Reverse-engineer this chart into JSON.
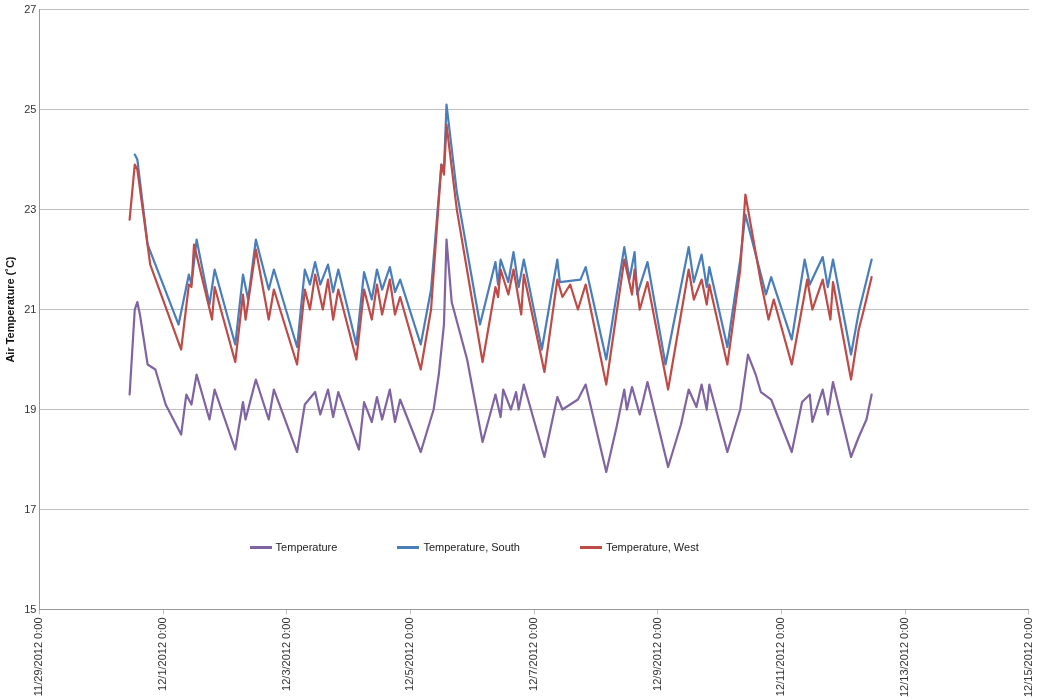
{
  "chart_data": {
    "type": "line",
    "ylabel": "Air Temperature (˚C)",
    "ylim": [
      15,
      27
    ],
    "yticks": [
      15,
      17,
      19,
      21,
      23,
      25,
      27
    ],
    "xlim": [
      "2012-11-29T00:00",
      "2012-12-15T00:00"
    ],
    "xticks": [
      {
        "value": "2012-11-29T00:00",
        "label": "11/29/2012 0:00"
      },
      {
        "value": "2012-12-01T00:00",
        "label": "12/1/2012 0:00"
      },
      {
        "value": "2012-12-03T00:00",
        "label": "12/3/2012 0:00"
      },
      {
        "value": "2012-12-05T00:00",
        "label": "12/5/2012 0:00"
      },
      {
        "value": "2012-12-07T00:00",
        "label": "12/7/2012 0:00"
      },
      {
        "value": "2012-12-09T00:00",
        "label": "12/9/2012 0:00"
      },
      {
        "value": "2012-12-11T00:00",
        "label": "12/11/2012 0:00"
      },
      {
        "value": "2012-12-13T00:00",
        "label": "12/13/2012 0:00"
      },
      {
        "value": "2012-12-15T00:00",
        "label": "12/15/2012 0:00"
      }
    ],
    "grid": "y",
    "legend": "bottom",
    "marker": "none",
    "line_style": "solid",
    "series": [
      {
        "name": "Temperature",
        "color": "#8064a2",
        "x": [
          "2012-11-30T11:00",
          "2012-11-30T13:00",
          "2012-11-30T14:00",
          "2012-11-30T15:00",
          "2012-11-30T18:00",
          "2012-11-30T21:00",
          "2012-12-01T01:00",
          "2012-12-01T07:00",
          "2012-12-01T09:00",
          "2012-12-01T11:00",
          "2012-12-01T13:00",
          "2012-12-01T18:00",
          "2012-12-01T20:00",
          "2012-12-02T04:00",
          "2012-12-02T07:00",
          "2012-12-02T08:00",
          "2012-12-02T12:00",
          "2012-12-02T17:00",
          "2012-12-02T19:00",
          "2012-12-03T04:00",
          "2012-12-03T07:00",
          "2012-12-03T11:00",
          "2012-12-03T13:00",
          "2012-12-03T16:00",
          "2012-12-03T18:00",
          "2012-12-03T20:00",
          "2012-12-04T04:00",
          "2012-12-04T06:00",
          "2012-12-04T09:00",
          "2012-12-04T11:00",
          "2012-12-04T13:00",
          "2012-12-04T16:00",
          "2012-12-04T18:00",
          "2012-12-04T20:00",
          "2012-12-05T04:00",
          "2012-12-05T09:00",
          "2012-12-05T11:00",
          "2012-12-05T13:00",
          "2012-12-05T14:00",
          "2012-12-05T16:00",
          "2012-12-05T22:00",
          "2012-12-06T04:00",
          "2012-12-06T09:00",
          "2012-12-06T11:00",
          "2012-12-06T12:00",
          "2012-12-06T15:00",
          "2012-12-06T17:00",
          "2012-12-06T18:00",
          "2012-12-06T20:00",
          "2012-12-07T04:00",
          "2012-12-07T09:00",
          "2012-12-07T11:00",
          "2012-12-07T17:00",
          "2012-12-07T20:00",
          "2012-12-08T04:00",
          "2012-12-08T08:00",
          "2012-12-08T11:00",
          "2012-12-08T12:00",
          "2012-12-08T14:00",
          "2012-12-08T17:00",
          "2012-12-08T20:00",
          "2012-12-09T04:00",
          "2012-12-09T09:00",
          "2012-12-09T12:00",
          "2012-12-09T15:00",
          "2012-12-09T17:00",
          "2012-12-09T19:00",
          "2012-12-09T20:00",
          "2012-12-10T03:00",
          "2012-12-10T08:00",
          "2012-12-10T11:00",
          "2012-12-10T14:00",
          "2012-12-10T16:00",
          "2012-12-10T20:00",
          "2012-12-11T04:00",
          "2012-12-11T08:00",
          "2012-12-11T11:00",
          "2012-12-11T12:00",
          "2012-12-11T16:00",
          "2012-12-11T18:00",
          "2012-12-11T20:00",
          "2012-12-12T03:00",
          "2012-12-12T06:00",
          "2012-12-12T09:00",
          "2012-12-12T11:00"
        ],
        "values": [
          19.3,
          21.0,
          21.15,
          20.9,
          19.9,
          19.8,
          19.1,
          18.5,
          19.3,
          19.1,
          19.7,
          18.8,
          19.4,
          18.2,
          19.15,
          18.8,
          19.6,
          18.8,
          19.4,
          18.15,
          19.1,
          19.35,
          18.9,
          19.4,
          18.85,
          19.35,
          18.2,
          19.15,
          18.75,
          19.25,
          18.8,
          19.4,
          18.75,
          19.2,
          18.15,
          19.0,
          19.7,
          20.7,
          22.4,
          21.15,
          20.0,
          18.35,
          19.3,
          18.85,
          19.4,
          19.0,
          19.35,
          19.0,
          19.5,
          18.05,
          19.25,
          19.0,
          19.2,
          19.5,
          17.75,
          18.65,
          19.4,
          19.0,
          19.45,
          18.9,
          19.55,
          17.85,
          18.7,
          19.4,
          19.05,
          19.5,
          19.0,
          19.5,
          18.15,
          19.0,
          20.1,
          19.7,
          19.35,
          19.2,
          18.15,
          19.15,
          19.3,
          18.75,
          19.4,
          18.9,
          19.55,
          18.05,
          18.45,
          18.8,
          19.3
        ]
      },
      {
        "name": "Temperature, South",
        "color": "#4a7ebb",
        "x": [
          "2012-11-30T13:00",
          "2012-11-30T14:00",
          "2012-11-30T18:00",
          "2012-12-01T06:00",
          "2012-12-01T10:00",
          "2012-12-01T11:00",
          "2012-12-01T13:00",
          "2012-12-01T18:00",
          "2012-12-01T20:00",
          "2012-12-02T04:00",
          "2012-12-02T07:00",
          "2012-12-02T09:00",
          "2012-12-02T12:00",
          "2012-12-02T17:00",
          "2012-12-02T19:00",
          "2012-12-03T04:00",
          "2012-12-03T07:00",
          "2012-12-03T09:00",
          "2012-12-03T11:00",
          "2012-12-03T13:00",
          "2012-12-03T16:00",
          "2012-12-03T18:00",
          "2012-12-03T20:00",
          "2012-12-04T03:00",
          "2012-12-04T06:00",
          "2012-12-04T09:00",
          "2012-12-04T11:00",
          "2012-12-04T13:00",
          "2012-12-04T16:00",
          "2012-12-04T18:00",
          "2012-12-04T20:00",
          "2012-12-05T04:00",
          "2012-12-05T08:00",
          "2012-12-05T12:00",
          "2012-12-05T13:00",
          "2012-12-05T14:00",
          "2012-12-05T18:00",
          "2012-12-06T03:00",
          "2012-12-06T09:00",
          "2012-12-06T10:00",
          "2012-12-06T11:00",
          "2012-12-06T14:00",
          "2012-12-06T16:00",
          "2012-12-06T18:00",
          "2012-12-06T20:00",
          "2012-12-07T03:00",
          "2012-12-07T09:00",
          "2012-12-07T10:00",
          "2012-12-07T18:00",
          "2012-12-07T20:00",
          "2012-12-08T04:00",
          "2012-12-08T11:00",
          "2012-12-08T13:00",
          "2012-12-08T15:00",
          "2012-12-08T16:00",
          "2012-12-08T20:00",
          "2012-12-09T03:00",
          "2012-12-09T12:00",
          "2012-12-09T14:00",
          "2012-12-09T17:00",
          "2012-12-09T19:00",
          "2012-12-09T20:00",
          "2012-12-10T03:00",
          "2012-12-10T08:00",
          "2012-12-10T10:00",
          "2012-12-10T15:00",
          "2012-12-10T18:00",
          "2012-12-10T20:00",
          "2012-12-11T04:00",
          "2012-12-11T09:00",
          "2012-12-11T11:00",
          "2012-12-11T16:00",
          "2012-12-11T18:00",
          "2012-12-11T20:00",
          "2012-12-12T03:00",
          "2012-12-12T06:00",
          "2012-12-12T11:00"
        ],
        "values": [
          24.1,
          24.0,
          22.3,
          20.7,
          21.7,
          21.5,
          22.4,
          21.1,
          21.8,
          20.3,
          21.7,
          21.2,
          22.4,
          21.4,
          21.8,
          20.25,
          21.8,
          21.5,
          21.95,
          21.5,
          21.9,
          21.35,
          21.8,
          20.3,
          21.75,
          21.2,
          21.8,
          21.4,
          21.85,
          21.35,
          21.6,
          20.3,
          21.4,
          23.9,
          23.8,
          25.1,
          23.35,
          20.7,
          21.95,
          21.5,
          22.0,
          21.55,
          22.15,
          21.45,
          22.0,
          20.2,
          22.0,
          21.55,
          21.6,
          21.85,
          20.0,
          22.25,
          21.6,
          22.15,
          21.3,
          21.95,
          19.9,
          22.25,
          21.55,
          22.1,
          21.45,
          21.85,
          20.25,
          22.0,
          22.9,
          21.9,
          21.3,
          21.65,
          20.4,
          22.0,
          21.5,
          22.05,
          21.45,
          22.0,
          20.1,
          20.95,
          22.0
        ]
      },
      {
        "name": "Temperature, West",
        "color": "#be4b48",
        "x": [
          "2012-11-30T11:00",
          "2012-11-30T13:00",
          "2012-11-30T14:00",
          "2012-11-30T19:00",
          "2012-12-01T07:00",
          "2012-12-01T10:00",
          "2012-12-01T11:00",
          "2012-12-01T12:00",
          "2012-12-01T19:00",
          "2012-12-01T20:00",
          "2012-12-02T04:00",
          "2012-12-02T07:00",
          "2012-12-02T08:00",
          "2012-12-02T12:00",
          "2012-12-02T17:00",
          "2012-12-02T19:00",
          "2012-12-03T04:00",
          "2012-12-03T07:00",
          "2012-12-03T09:00",
          "2012-12-03T11:00",
          "2012-12-03T14:00",
          "2012-12-03T16:00",
          "2012-12-03T18:00",
          "2012-12-03T20:00",
          "2012-12-04T03:00",
          "2012-12-04T06:00",
          "2012-12-04T09:00",
          "2012-12-04T11:00",
          "2012-12-04T13:00",
          "2012-12-04T16:00",
          "2012-12-04T18:00",
          "2012-12-04T20:00",
          "2012-12-05T04:00",
          "2012-12-05T08:00",
          "2012-12-05T12:00",
          "2012-12-05T13:00",
          "2012-12-05T14:00",
          "2012-12-05T18:00",
          "2012-12-06T04:00",
          "2012-12-06T09:00",
          "2012-12-06T10:00",
          "2012-12-06T11:00",
          "2012-12-06T14:00",
          "2012-12-06T16:00",
          "2012-12-06T19:00",
          "2012-12-06T20:00",
          "2012-12-07T04:00",
          "2012-12-07T09:00",
          "2012-12-07T11:00",
          "2012-12-07T14:00",
          "2012-12-07T17:00",
          "2012-12-07T20:00",
          "2012-12-08T04:00",
          "2012-12-08T11:00",
          "2012-12-08T14:00",
          "2012-12-08T15:00",
          "2012-12-08T17:00",
          "2012-12-08T20:00",
          "2012-12-09T04:00",
          "2012-12-09T12:00",
          "2012-12-09T14:00",
          "2012-12-09T17:00",
          "2012-12-09T19:00",
          "2012-12-09T20:00",
          "2012-12-10T03:00",
          "2012-12-10T08:00",
          "2012-12-10T10:00",
          "2012-12-10T16:00",
          "2012-12-10T19:00",
          "2012-12-10T21:00",
          "2012-12-11T04:00",
          "2012-12-11T10:00",
          "2012-12-11T12:00",
          "2012-12-11T16:00",
          "2012-12-11T19:00",
          "2012-12-11T20:00",
          "2012-12-12T03:00",
          "2012-12-12T06:00",
          "2012-12-12T08:00",
          "2012-12-12T11:00"
        ],
        "values": [
          22.8,
          23.9,
          23.8,
          21.9,
          20.2,
          21.5,
          21.45,
          22.3,
          20.8,
          21.45,
          19.95,
          21.3,
          20.8,
          22.2,
          20.8,
          21.4,
          19.9,
          21.4,
          21.0,
          21.7,
          21.0,
          21.6,
          20.8,
          21.4,
          20.0,
          21.4,
          20.8,
          21.5,
          20.9,
          21.6,
          20.9,
          21.25,
          19.8,
          21.0,
          23.9,
          23.7,
          24.7,
          23.0,
          19.95,
          21.45,
          21.25,
          21.8,
          21.3,
          21.8,
          20.9,
          21.7,
          19.75,
          21.6,
          21.25,
          21.5,
          21.0,
          21.5,
          19.5,
          22.0,
          21.3,
          21.8,
          21.0,
          21.55,
          19.4,
          21.8,
          21.2,
          21.6,
          21.1,
          21.5,
          19.9,
          21.8,
          23.3,
          21.55,
          20.8,
          21.2,
          19.9,
          21.6,
          21.0,
          21.6,
          20.8,
          21.55,
          19.6,
          20.6,
          21.0,
          21.65
        ]
      }
    ]
  }
}
